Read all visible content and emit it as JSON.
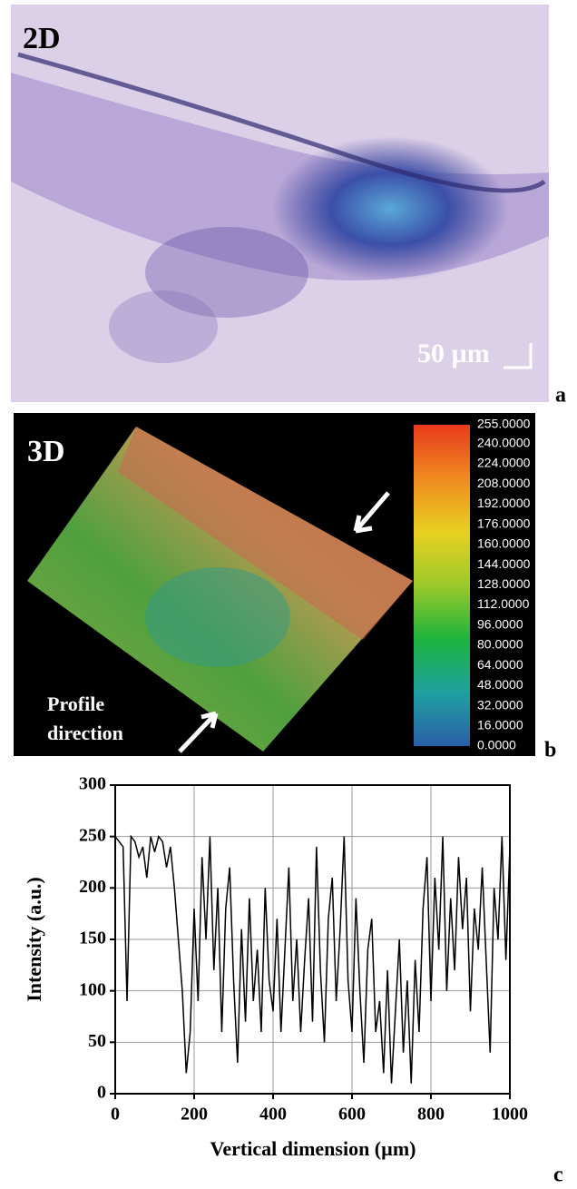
{
  "panel_a": {
    "label": "2D",
    "scale_bar": "50 µm",
    "letter": "a"
  },
  "panel_b": {
    "label": "3D",
    "profile_label": [
      "Profile",
      "direction"
    ],
    "letter": "b",
    "colorbar": {
      "lim": [
        0,
        255
      ],
      "colors": [
        "#2a5fa8",
        "#1fa0a0",
        "#1db33c",
        "#9cc92a",
        "#e8d020",
        "#f08a20",
        "#e83a1c"
      ],
      "ticks": [
        {
          "value": 255,
          "label": "255.0000"
        },
        {
          "value": 240,
          "label": "240.0000"
        },
        {
          "value": 224,
          "label": "224.0000"
        },
        {
          "value": 208,
          "label": "208.0000"
        },
        {
          "value": 192,
          "label": "192.0000"
        },
        {
          "value": 176,
          "label": "176.0000"
        },
        {
          "value": 160,
          "label": "160.0000"
        },
        {
          "value": 144,
          "label": "144.0000"
        },
        {
          "value": 128,
          "label": "128.0000"
        },
        {
          "value": 112,
          "label": "112.0000"
        },
        {
          "value": 96,
          "label": "96.0000"
        },
        {
          "value": 80,
          "label": "80.0000"
        },
        {
          "value": 64,
          "label": "64.0000"
        },
        {
          "value": 48,
          "label": "48.0000"
        },
        {
          "value": 32,
          "label": "32.0000"
        },
        {
          "value": 16,
          "label": "16.0000"
        },
        {
          "value": 0,
          "label": "0.0000"
        }
      ]
    }
  },
  "chart_data": {
    "type": "line",
    "letter": "c",
    "x_label": "Vertical dimension (µm)",
    "y_label": "Intensity (a.u.)",
    "xlim": [
      0,
      1000
    ],
    "ylim": [
      0,
      300
    ],
    "xticks": [
      0,
      200,
      400,
      600,
      800,
      1000
    ],
    "yticks": [
      0,
      50,
      100,
      150,
      200,
      250,
      300
    ],
    "grid": true,
    "color": "#000000",
    "x": [
      0,
      10,
      20,
      30,
      40,
      50,
      60,
      70,
      80,
      90,
      100,
      110,
      120,
      130,
      140,
      150,
      160,
      170,
      180,
      190,
      200,
      210,
      220,
      230,
      240,
      250,
      260,
      270,
      280,
      290,
      300,
      310,
      320,
      330,
      340,
      350,
      360,
      370,
      380,
      390,
      400,
      410,
      420,
      430,
      440,
      450,
      460,
      470,
      480,
      490,
      500,
      510,
      520,
      530,
      540,
      550,
      560,
      570,
      580,
      590,
      600,
      610,
      620,
      630,
      640,
      650,
      660,
      670,
      680,
      690,
      700,
      710,
      720,
      730,
      740,
      750,
      760,
      770,
      780,
      790,
      800,
      810,
      820,
      830,
      840,
      850,
      860,
      870,
      880,
      890,
      900,
      910,
      920,
      930,
      940,
      950,
      960,
      970,
      980,
      990,
      1000
    ],
    "values": [
      250,
      245,
      240,
      90,
      250,
      245,
      230,
      240,
      210,
      250,
      235,
      250,
      245,
      220,
      240,
      200,
      150,
      100,
      20,
      60,
      180,
      90,
      230,
      150,
      250,
      120,
      200,
      60,
      180,
      220,
      110,
      30,
      160,
      70,
      190,
      90,
      140,
      60,
      200,
      110,
      80,
      170,
      60,
      140,
      220,
      90,
      150,
      60,
      130,
      190,
      70,
      240,
      120,
      50,
      170,
      210,
      90,
      160,
      250,
      110,
      60,
      190,
      100,
      30,
      140,
      170,
      60,
      90,
      20,
      120,
      10,
      80,
      150,
      40,
      110,
      10,
      130,
      60,
      180,
      230,
      90,
      210,
      140,
      250,
      100,
      190,
      120,
      230,
      160,
      210,
      80,
      180,
      140,
      220,
      130,
      40,
      200,
      150,
      250,
      130,
      240
    ]
  }
}
